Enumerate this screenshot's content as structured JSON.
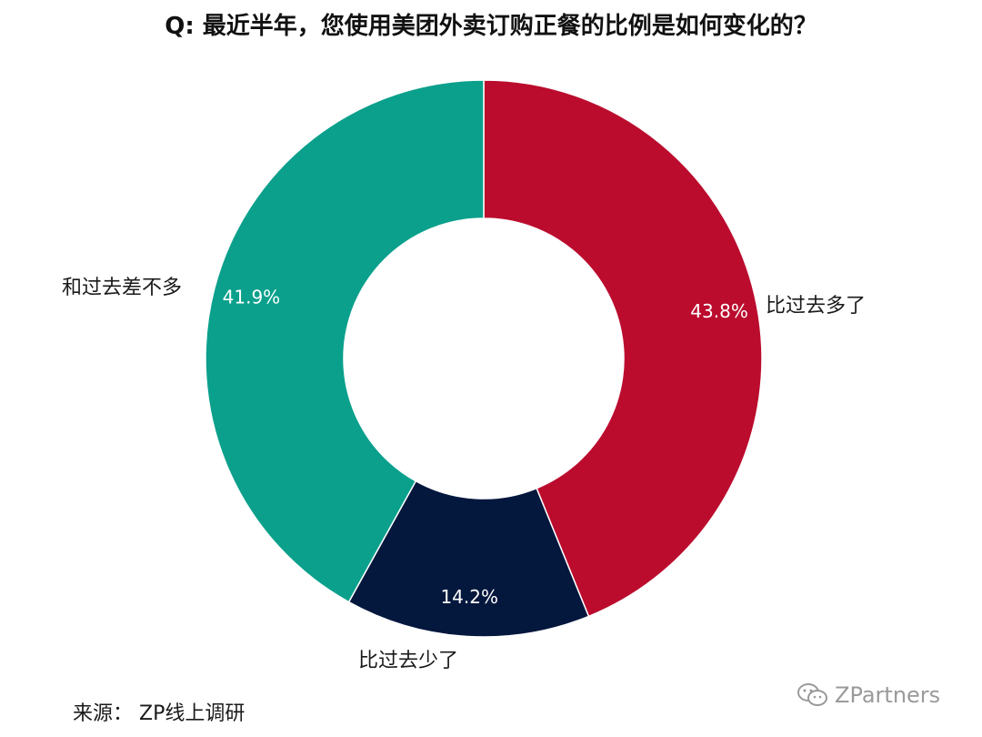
{
  "chart_data": {
    "type": "pie",
    "title": "Q: 最近半年，您使用美团外卖订购正餐的比例是如何变化的？",
    "slices": [
      {
        "label": "比过去多了",
        "value": 43.8,
        "value_label": "43.8%",
        "color": "#BB0C2E"
      },
      {
        "label": "比过去少了",
        "value": 14.2,
        "value_label": "14.2%",
        "color": "#04173D"
      },
      {
        "label": "和过去差不多",
        "value": 41.9,
        "value_label": "41.9%",
        "color": "#0AA08C"
      }
    ],
    "donut": true
  },
  "footer": {
    "source": "来源： ZP线上调研",
    "watermark": "ZPartners",
    "watermark_icon": "wechat-icon"
  }
}
